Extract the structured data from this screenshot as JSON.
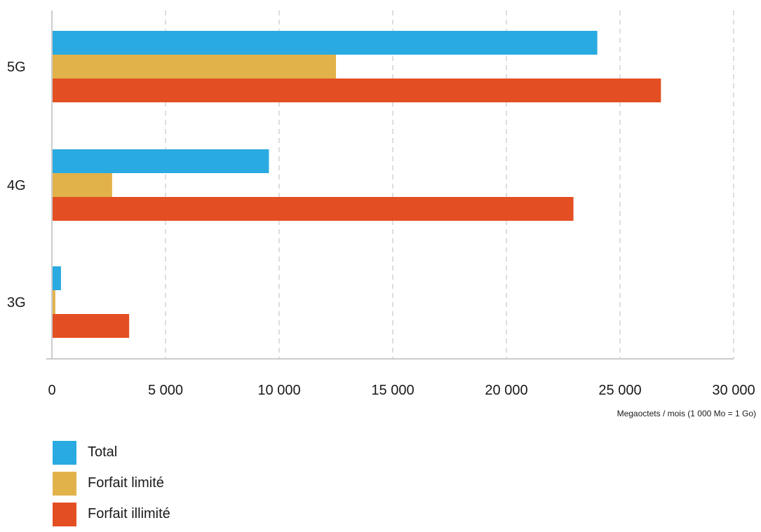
{
  "chart_data": {
    "type": "bar",
    "orientation": "horizontal",
    "categories": [
      "5G",
      "4G",
      "3G"
    ],
    "series": [
      {
        "name": "Total",
        "color": "#29aae1",
        "values": [
          24000,
          9550,
          400
        ]
      },
      {
        "name": "Forfait limité",
        "color": "#e2b24a",
        "values": [
          12500,
          2650,
          150
        ]
      },
      {
        "name": "Forfait illimité",
        "color": "#e34f22",
        "values": [
          26800,
          22950,
          3400
        ]
      }
    ],
    "x_ticks": [
      "0",
      "5 000",
      "10 000",
      "15 000",
      "20 000",
      "25 000",
      "30 000"
    ],
    "xlim": [
      0,
      30000
    ],
    "xlabel": "Megaoctets / mois (1 000 Mo = 1 Go)",
    "ylabel": "",
    "title": "",
    "grid": "vertical dashed",
    "legend_position": "bottom-left"
  }
}
